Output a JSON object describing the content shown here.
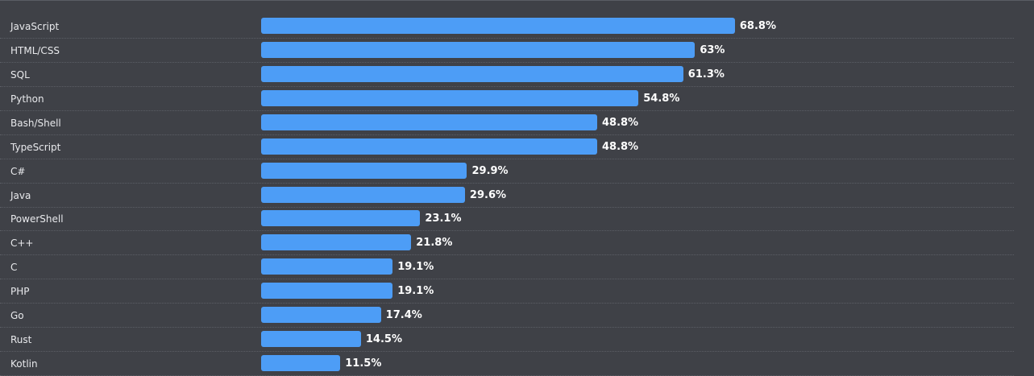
{
  "chart_data": {
    "type": "bar",
    "orientation": "horizontal",
    "categories": [
      "JavaScript",
      "HTML/CSS",
      "SQL",
      "Python",
      "Bash/Shell",
      "TypeScript",
      "C#",
      "Java",
      "PowerShell",
      "C++",
      "C",
      "PHP",
      "Go",
      "Rust",
      "Kotlin"
    ],
    "values": [
      68.8,
      63,
      61.3,
      54.8,
      48.8,
      48.8,
      29.9,
      29.6,
      23.1,
      21.8,
      19.1,
      19.1,
      17.4,
      14.5,
      11.5
    ],
    "value_labels": [
      "68.8%",
      "63%",
      "61.3%",
      "54.8%",
      "48.8%",
      "48.8%",
      "29.9%",
      "29.6%",
      "23.1%",
      "21.8%",
      "19.1%",
      "19.1%",
      "17.4%",
      "14.5%",
      "11.5%"
    ],
    "title": "",
    "xlabel": "",
    "ylabel": "",
    "xlim": [
      0,
      100
    ],
    "grid": false,
    "legend": "none"
  },
  "colors": {
    "background": "#3f4147",
    "bar": "#4d9df6",
    "label_text": "#e8e9ec",
    "value_text": "#ffffff",
    "divider": "#5b5e65"
  }
}
